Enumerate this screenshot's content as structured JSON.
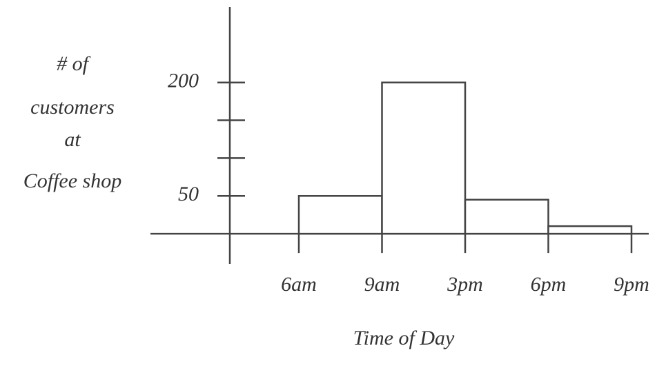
{
  "chart_data": {
    "type": "histogram",
    "y_label": [
      "# of",
      "customers",
      "at",
      "Coffee shop"
    ],
    "x_label": "Time of Day",
    "bins": [
      "6am",
      "9am",
      "3pm",
      "6pm",
      "9pm"
    ],
    "values": [
      50,
      200,
      45,
      10
    ],
    "ylim": [
      -40,
      300
    ],
    "yticks": [
      50,
      {
        "value": 100,
        "label": null
      },
      {
        "value": 150,
        "label": null
      },
      200
    ],
    "color": "#ffffff"
  }
}
